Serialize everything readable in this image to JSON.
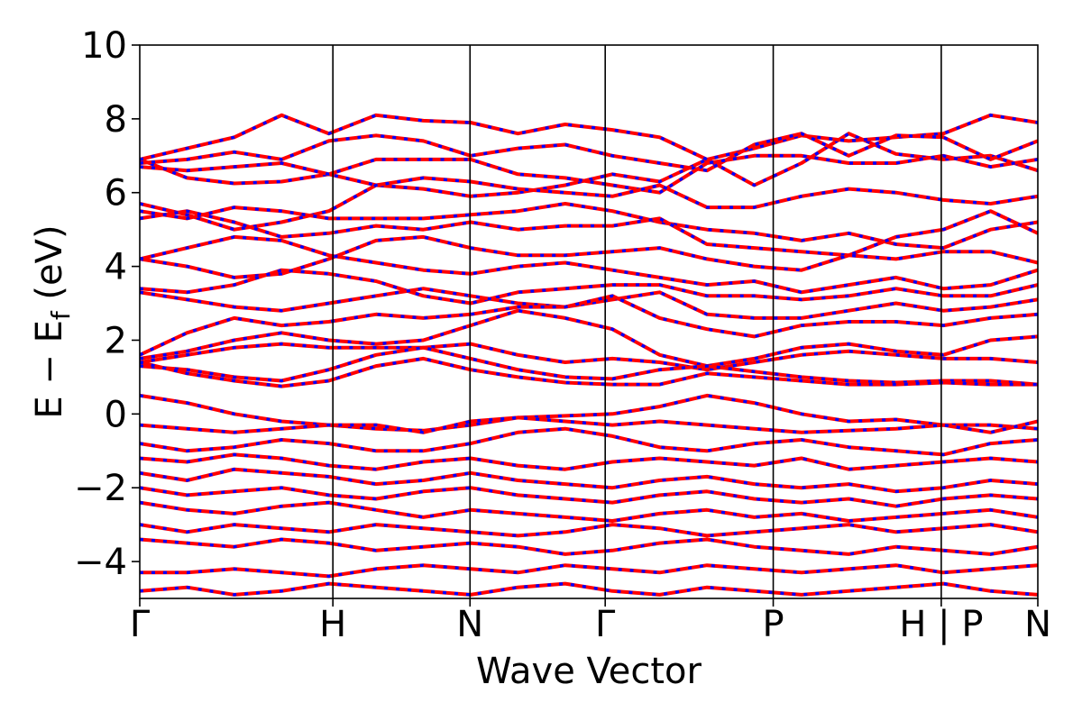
{
  "chart_data": {
    "type": "line",
    "xlabel": "Wave Vector",
    "ylabel": {
      "main": "E − E",
      "subscript": "f",
      "unit": " (eV)"
    },
    "ylim": [
      -5,
      10
    ],
    "yticks": [
      -4,
      -2,
      0,
      2,
      4,
      6,
      8,
      10
    ],
    "ytick_labels": [
      "−4",
      "−2",
      "0",
      "2",
      "4",
      "6",
      "8",
      "10"
    ],
    "kpath": {
      "positions": [
        0,
        1.0,
        1.71,
        2.41,
        3.28,
        4.15,
        4.65
      ],
      "labels": [
        "Γ",
        "H",
        "N",
        "Γ",
        "P",
        "H | P",
        "N"
      ]
    },
    "line_style": {
      "solid_color": "#ff0000",
      "dashed_color": "#0000ff"
    },
    "series": [
      {
        "values": [
          6.9,
          6.4,
          6.25,
          6.3,
          6.5,
          6.2,
          6.1,
          5.9,
          6.0,
          6.2,
          6.5,
          6.3,
          6.9,
          6.2,
          6.8,
          7.6,
          7.05,
          6.9,
          7.0,
          6.6
        ]
      },
      {
        "values": [
          6.9,
          7.2,
          7.5,
          8.1,
          7.6,
          8.1,
          7.95,
          7.9,
          7.6,
          7.85,
          7.7,
          7.5,
          6.9,
          7.2,
          7.55,
          7.4,
          7.5,
          7.6,
          8.1,
          7.9
        ]
      },
      {
        "values": [
          6.8,
          6.9,
          7.1,
          6.9,
          7.4,
          7.55,
          7.4,
          7.0,
          7.2,
          7.3,
          7.0,
          6.8,
          6.6,
          7.3,
          7.6,
          7.0,
          7.55,
          7.5,
          6.9,
          7.4
        ]
      },
      {
        "values": [
          6.7,
          6.6,
          6.7,
          6.8,
          6.5,
          6.9,
          6.9,
          6.9,
          6.5,
          6.4,
          6.2,
          6.0,
          6.8,
          7.0,
          7.0,
          6.8,
          6.8,
          7.0,
          6.7,
          6.9
        ]
      },
      {
        "values": [
          5.7,
          5.4,
          5.0,
          5.2,
          5.5,
          6.2,
          6.4,
          6.3,
          6.1,
          6.0,
          5.9,
          6.2,
          5.6,
          5.6,
          5.9,
          6.1,
          6.0,
          5.8,
          5.7,
          5.9
        ]
      },
      {
        "values": [
          5.5,
          5.3,
          5.6,
          5.5,
          5.3,
          5.3,
          5.3,
          5.4,
          5.5,
          5.7,
          5.5,
          5.2,
          5.0,
          4.9,
          4.7,
          4.9,
          4.6,
          4.5,
          5.0,
          5.2
        ]
      },
      {
        "values": [
          5.3,
          5.5,
          5.2,
          4.8,
          4.9,
          5.1,
          5.0,
          5.2,
          5.0,
          5.1,
          5.1,
          5.3,
          4.6,
          4.5,
          4.4,
          4.3,
          4.8,
          5.0,
          5.5,
          4.9
        ]
      },
      {
        "values": [
          4.2,
          4.0,
          3.7,
          3.8,
          4.2,
          4.7,
          4.8,
          4.5,
          4.3,
          4.3,
          4.4,
          4.5,
          4.2,
          4.0,
          3.9,
          4.3,
          4.2,
          4.4,
          4.4,
          4.1
        ]
      },
      {
        "values": [
          4.2,
          4.5,
          4.8,
          4.7,
          4.3,
          4.1,
          3.9,
          3.8,
          4.0,
          4.1,
          3.9,
          3.7,
          3.5,
          3.6,
          3.3,
          3.5,
          3.7,
          3.4,
          3.5,
          3.9
        ]
      },
      {
        "values": [
          3.4,
          3.3,
          3.5,
          3.9,
          3.8,
          3.6,
          3.2,
          3.0,
          3.3,
          3.4,
          3.5,
          3.5,
          3.2,
          3.2,
          3.1,
          3.2,
          3.4,
          3.2,
          3.2,
          3.5
        ]
      },
      {
        "values": [
          3.3,
          3.1,
          2.9,
          2.8,
          3.0,
          3.2,
          3.4,
          3.2,
          3.0,
          2.9,
          3.1,
          3.3,
          2.7,
          2.6,
          2.6,
          2.8,
          3.0,
          2.8,
          2.9,
          3.1
        ]
      },
      {
        "values": [
          1.6,
          2.2,
          2.6,
          2.4,
          2.5,
          2.7,
          2.6,
          2.7,
          2.9,
          2.9,
          3.2,
          2.6,
          2.3,
          2.1,
          2.4,
          2.5,
          2.5,
          2.4,
          2.6,
          2.7
        ]
      },
      {
        "values": [
          1.5,
          1.7,
          2.0,
          2.2,
          2.0,
          1.9,
          2.0,
          2.4,
          2.8,
          2.6,
          2.3,
          1.6,
          1.3,
          1.5,
          1.8,
          1.9,
          1.7,
          1.6,
          2.0,
          2.1
        ]
      },
      {
        "values": [
          1.4,
          1.6,
          1.8,
          1.9,
          1.8,
          1.8,
          1.8,
          1.9,
          1.6,
          1.4,
          1.5,
          1.4,
          1.2,
          1.4,
          1.6,
          1.7,
          1.6,
          1.5,
          1.5,
          1.4
        ]
      },
      {
        "values": [
          1.3,
          1.2,
          1.0,
          0.9,
          1.2,
          1.6,
          1.8,
          1.5,
          1.2,
          1.0,
          0.95,
          1.2,
          1.3,
          1.15,
          1.0,
          0.9,
          0.85,
          0.9,
          0.9,
          0.8
        ]
      },
      {
        "values": [
          1.4,
          1.1,
          0.9,
          0.75,
          0.9,
          1.3,
          1.5,
          1.2,
          1.0,
          0.85,
          0.8,
          0.8,
          1.1,
          1.0,
          0.9,
          0.8,
          0.8,
          0.85,
          0.8,
          0.8
        ]
      },
      {
        "values": [
          0.5,
          0.3,
          0.0,
          -0.2,
          -0.3,
          -0.4,
          -0.45,
          -0.3,
          -0.1,
          -0.05,
          0.0,
          0.2,
          0.5,
          0.3,
          0.0,
          -0.2,
          -0.15,
          -0.3,
          -0.3,
          -0.4
        ]
      },
      {
        "values": [
          -0.3,
          -0.4,
          -0.5,
          -0.4,
          -0.3,
          -0.3,
          -0.5,
          -0.2,
          -0.1,
          -0.2,
          -0.3,
          -0.2,
          -0.3,
          -0.4,
          -0.5,
          -0.45,
          -0.4,
          -0.3,
          -0.5,
          -0.2
        ]
      },
      {
        "values": [
          -0.8,
          -1.0,
          -0.9,
          -0.7,
          -0.8,
          -1.0,
          -1.0,
          -0.8,
          -0.5,
          -0.4,
          -0.6,
          -0.9,
          -1.0,
          -0.8,
          -0.7,
          -0.9,
          -1.0,
          -1.1,
          -0.8,
          -0.7
        ]
      },
      {
        "values": [
          -1.2,
          -1.3,
          -1.1,
          -1.2,
          -1.4,
          -1.5,
          -1.3,
          -1.2,
          -1.4,
          -1.5,
          -1.3,
          -1.2,
          -1.3,
          -1.4,
          -1.2,
          -1.5,
          -1.4,
          -1.3,
          -1.2,
          -1.3
        ]
      },
      {
        "values": [
          -1.6,
          -1.8,
          -1.5,
          -1.6,
          -1.7,
          -1.9,
          -1.8,
          -1.6,
          -1.8,
          -1.9,
          -2.0,
          -1.8,
          -1.7,
          -1.9,
          -2.0,
          -1.9,
          -2.1,
          -2.0,
          -1.8,
          -1.9
        ]
      },
      {
        "values": [
          -2.0,
          -2.2,
          -2.1,
          -2.0,
          -2.2,
          -2.3,
          -2.1,
          -2.0,
          -2.2,
          -2.3,
          -2.4,
          -2.2,
          -2.1,
          -2.3,
          -2.4,
          -2.3,
          -2.5,
          -2.3,
          -2.2,
          -2.3
        ]
      },
      {
        "values": [
          -2.4,
          -2.6,
          -2.7,
          -2.5,
          -2.4,
          -2.6,
          -2.8,
          -2.6,
          -2.7,
          -2.8,
          -2.9,
          -2.7,
          -2.6,
          -2.8,
          -2.7,
          -2.9,
          -2.8,
          -2.7,
          -2.6,
          -2.8
        ]
      },
      {
        "values": [
          -3.0,
          -3.2,
          -3.0,
          -3.1,
          -3.2,
          -3.0,
          -3.1,
          -3.2,
          -3.3,
          -3.2,
          -3.0,
          -3.1,
          -3.3,
          -3.2,
          -3.1,
          -3.0,
          -3.2,
          -3.1,
          -3.0,
          -3.2
        ]
      },
      {
        "values": [
          -3.4,
          -3.5,
          -3.6,
          -3.4,
          -3.5,
          -3.7,
          -3.6,
          -3.5,
          -3.6,
          -3.8,
          -3.7,
          -3.5,
          -3.4,
          -3.6,
          -3.7,
          -3.8,
          -3.6,
          -3.7,
          -3.8,
          -3.6
        ]
      },
      {
        "values": [
          -4.3,
          -4.3,
          -4.2,
          -4.3,
          -4.4,
          -4.2,
          -4.1,
          -4.2,
          -4.3,
          -4.1,
          -4.2,
          -4.3,
          -4.1,
          -4.2,
          -4.3,
          -4.2,
          -4.1,
          -4.3,
          -4.2,
          -4.1
        ]
      },
      {
        "values": [
          -4.8,
          -4.7,
          -4.9,
          -4.8,
          -4.6,
          -4.7,
          -4.8,
          -4.9,
          -4.7,
          -4.6,
          -4.8,
          -4.9,
          -4.7,
          -4.8,
          -4.9,
          -4.8,
          -4.7,
          -4.6,
          -4.8,
          -4.9
        ]
      }
    ]
  }
}
